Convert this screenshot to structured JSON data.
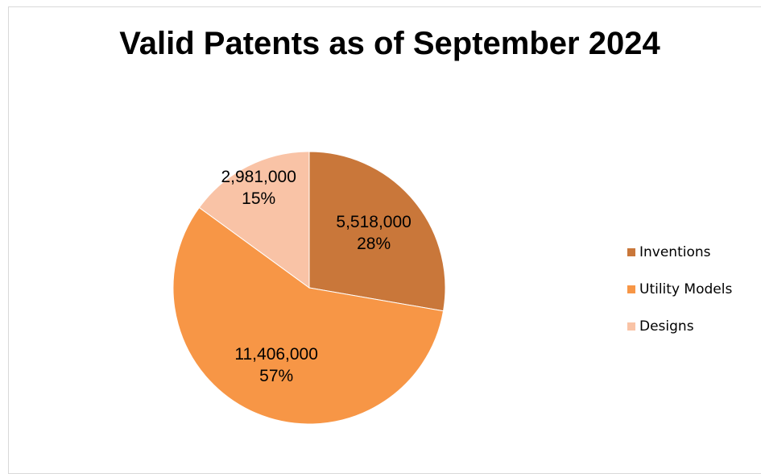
{
  "chart_data": {
    "type": "pie",
    "title": "Valid Patents as of September 2024",
    "categories": [
      "Inventions",
      "Utility Models",
      "Designs"
    ],
    "values": [
      5518000,
      11406000,
      2981000
    ],
    "value_labels": [
      "5,518,000",
      "11,406,000",
      "2,981,000"
    ],
    "percentages": [
      28,
      57,
      15
    ],
    "percentage_labels": [
      "28%",
      "57%",
      "15%"
    ],
    "colors": [
      "#c9773a",
      "#f79646",
      "#f9c3a6"
    ],
    "legend": "right"
  }
}
